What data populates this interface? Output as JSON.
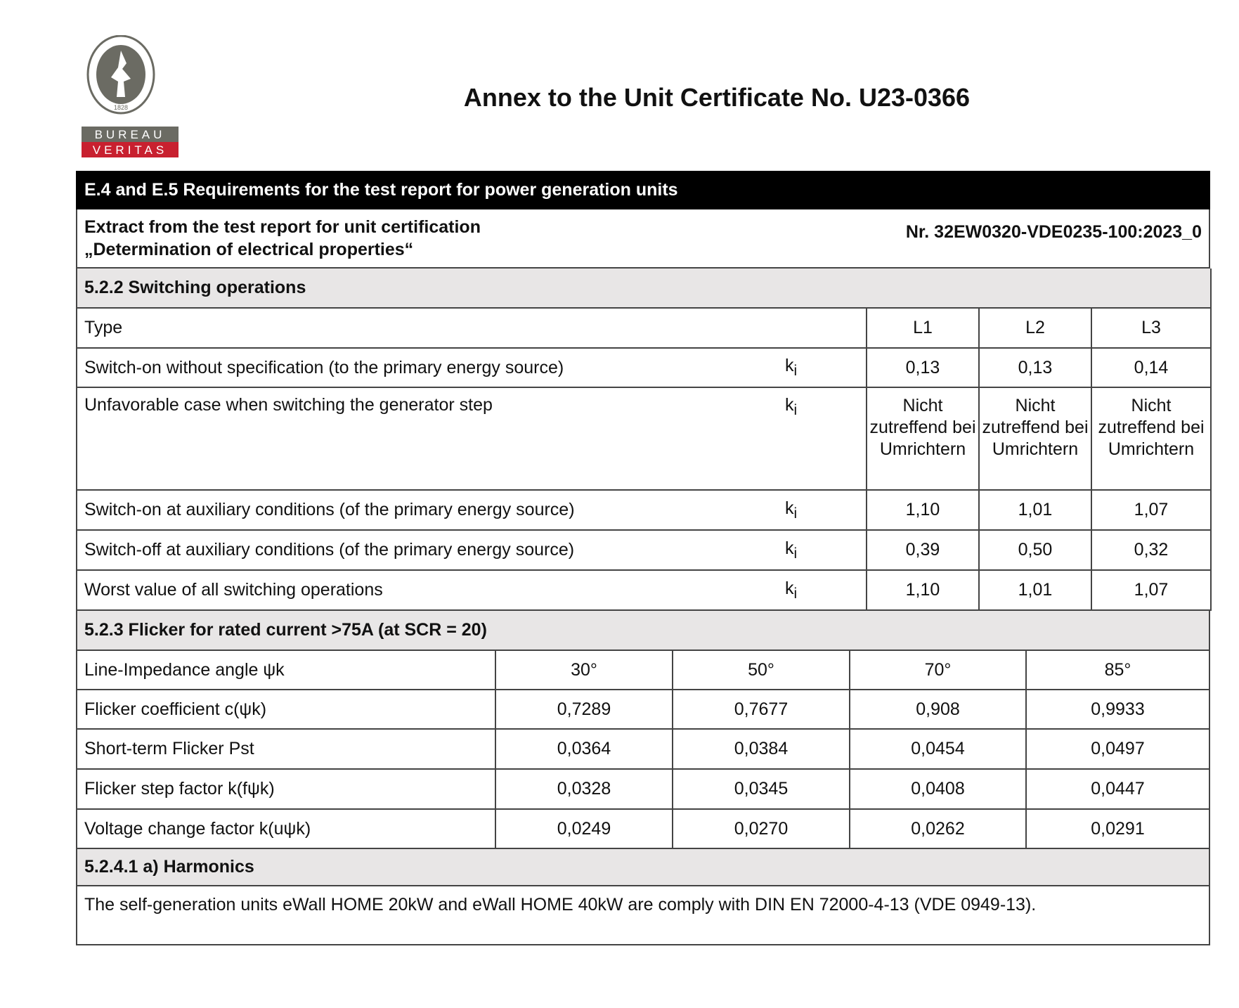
{
  "logo": {
    "ring_text": "BUREAU VERITAS",
    "year": "1828",
    "word1": "BUREAU",
    "word2": "VERITAS"
  },
  "title": "Annex to the Unit Certificate No. U23-0366",
  "header_bar": "E.4 and E.5 Requirements for the test report for power generation units",
  "extract": {
    "line1": "Extract from the test report for unit certification",
    "line2": "„Determination of electrical properties“",
    "number": "Nr. 32EW0320-VDE0235-100:2023_0"
  },
  "switching": {
    "heading": "5.2.2 Switching operations",
    "type_label": "Type",
    "columns": [
      "L1",
      "L2",
      "L3"
    ],
    "rows": [
      {
        "label": "Switch-on without specification (to the primary energy source)",
        "symbol": "ki",
        "values": [
          "0,13",
          "0,13",
          "0,14"
        ]
      },
      {
        "label": "Unfavorable case when switching the generator step",
        "symbol": "ki",
        "values": [
          "Nicht zutreffend bei Umrichtern",
          "Nicht zutreffend bei Umrichtern",
          "Nicht zutreffend bei Umrichtern"
        ]
      },
      {
        "label": "Switch-on at auxiliary conditions (of the primary energy source)",
        "symbol": "ki",
        "values": [
          "1,10",
          "1,01",
          "1,07"
        ]
      },
      {
        "label": "Switch-off at auxiliary conditions (of the primary energy source)",
        "symbol": "ki",
        "values": [
          "0,39",
          "0,50",
          "0,32"
        ]
      },
      {
        "label": "Worst value of all switching operations",
        "symbol": "ki",
        "values": [
          "1,10",
          "1,01",
          "1,07"
        ]
      }
    ]
  },
  "flicker": {
    "heading": "5.2.3 Flicker for rated current >75A (at SCR = 20)",
    "rows": [
      {
        "label": "Line-Impedance angle ψk",
        "values": [
          "30°",
          "50°",
          "70°",
          "85°"
        ]
      },
      {
        "label": "Flicker coefficient c(ψk)",
        "values": [
          "0,7289",
          "0,7677",
          "0,908",
          "0,9933"
        ]
      },
      {
        "label": "Short-term Flicker Pst",
        "values": [
          "0,0364",
          "0,0384",
          "0,0454",
          "0,0497"
        ]
      },
      {
        "label": "Flicker step factor k(fψk)",
        "values": [
          "0,0328",
          "0,0345",
          "0,0408",
          "0,0447"
        ]
      },
      {
        "label": "Voltage change factor k(uψk)",
        "values": [
          "0,0249",
          "0,0270",
          "0,0262",
          "0,0291"
        ]
      }
    ]
  },
  "harmonics": {
    "heading": "5.2.4.1 a) Harmonics",
    "text": "The self-generation units eWall HOME 20kW and eWall HOME 40kW are comply with DIN EN 72000-4-13 (VDE 0949-13)."
  }
}
